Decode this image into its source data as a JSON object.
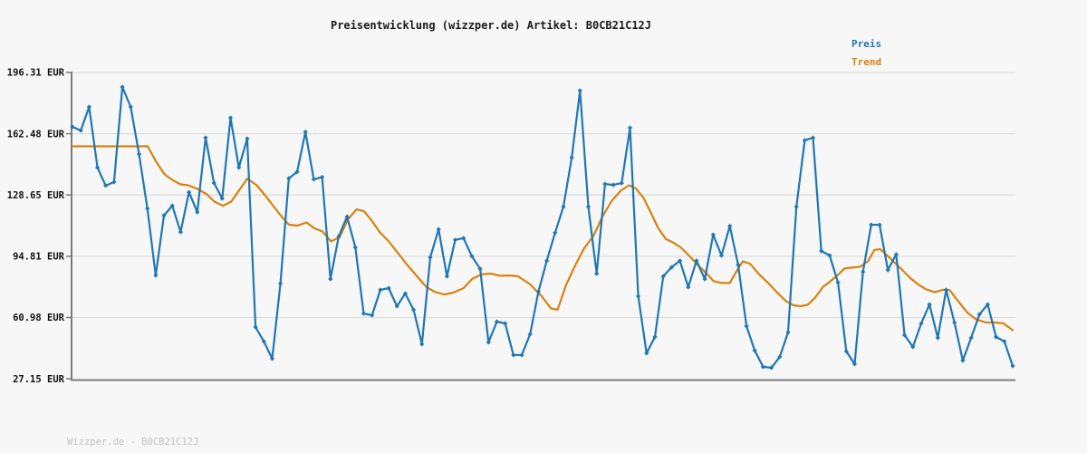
{
  "header": {
    "title": "Preisentwicklung (wizzper.de) Artikel: B0CB21C12J"
  },
  "legend": {
    "items": [
      {
        "label": "Preis",
        "color": "#1f77b4"
      },
      {
        "label": "Trend",
        "color": "#d8820e"
      }
    ]
  },
  "watermark": {
    "text": "Wizzper.de - B0CB21C12J"
  },
  "y_axis": {
    "unit": "EUR",
    "ticks": [
      "196.31 EUR",
      "162.48 EUR",
      "128.65 EUR",
      "94.81 EUR",
      "60.98 EUR",
      "27.15 EUR"
    ]
  },
  "colors": {
    "background": "#f7f7f7",
    "gridline": "#dedede",
    "axis": "#7a7a7a",
    "price": "#1f77b4",
    "trend": "#d8820e"
  },
  "chart_data": {
    "type": "line",
    "title": "Preisentwicklung (wizzper.de) Artikel: B0CB21C12J",
    "xlabel": "",
    "ylabel": "EUR",
    "ylim": [
      27.15,
      196.31
    ],
    "y_tick_values": [
      196.31,
      162.48,
      128.65,
      94.81,
      60.98,
      27.15
    ],
    "grid": "horizontal",
    "legend_position": "top-right",
    "x_axis_labels": "none (time axis unlabeled)",
    "series": [
      {
        "name": "Preis",
        "color": "#1f77b4",
        "marker": "diamond",
        "values": [
          166.3,
          164.3,
          177.3,
          143.8,
          133.8,
          135.8,
          188.3,
          177.3,
          151.2,
          121.2,
          84.2,
          117.3,
          122.7,
          108.2,
          130.2,
          119.2,
          160.3,
          135.3,
          126.7,
          171.3,
          143.8,
          159.8,
          55.7,
          47.7,
          38.2,
          79.7,
          137.8,
          141.4,
          163.5,
          137.3,
          138.5,
          82.2,
          105.7,
          116.7,
          99.7,
          63.2,
          62.2,
          76.2,
          77.2,
          67.2,
          74.2,
          65.2,
          46.2,
          94.2,
          109.7,
          83.7,
          103.8,
          104.8,
          94.8,
          87.8,
          47.2,
          58.7,
          57.7,
          40.2,
          40.2,
          51.7,
          75.2,
          92.3,
          107.8,
          122.2,
          149.3,
          186.3,
          122.2,
          85.2,
          134.7,
          134.2,
          135.2,
          165.8,
          72.7,
          41.2,
          50.2,
          83.7,
          88.7,
          92.3,
          77.7,
          92.3,
          82.2,
          106.7,
          95.2,
          111.5,
          90.0,
          56.2,
          42.7,
          33.7,
          33.2,
          39.2,
          52.7,
          122.2,
          158.8,
          160.3,
          97.7,
          95.2,
          80.3,
          42.2,
          35.2,
          86.2,
          112.2,
          112.2,
          87.2,
          95.8,
          51.2,
          44.7,
          57.7,
          68.2,
          49.7,
          76.2,
          58.2,
          37.2,
          49.7,
          62.7,
          68.2,
          50.2,
          47.7,
          34.2
        ]
      },
      {
        "name": "Trend",
        "color": "#d8820e",
        "marker": "none",
        "points": [
          [
            0.0,
            155.5
          ],
          [
            0.048,
            155.5
          ],
          [
            0.08,
            155.5
          ],
          [
            0.089,
            147.0
          ],
          [
            0.098,
            140.0
          ],
          [
            0.106,
            137.0
          ],
          [
            0.115,
            134.5
          ],
          [
            0.123,
            134.0
          ],
          [
            0.133,
            132.0
          ],
          [
            0.143,
            129.0
          ],
          [
            0.151,
            125.0
          ],
          [
            0.16,
            122.7
          ],
          [
            0.169,
            125.0
          ],
          [
            0.177,
            131.0
          ],
          [
            0.186,
            137.7
          ],
          [
            0.196,
            134.0
          ],
          [
            0.204,
            129.0
          ],
          [
            0.213,
            123.0
          ],
          [
            0.222,
            117.0
          ],
          [
            0.23,
            112.3
          ],
          [
            0.239,
            111.7
          ],
          [
            0.249,
            113.5
          ],
          [
            0.257,
            110.3
          ],
          [
            0.266,
            108.5
          ],
          [
            0.275,
            103.0
          ],
          [
            0.284,
            105.2
          ],
          [
            0.293,
            115.2
          ],
          [
            0.302,
            120.7
          ],
          [
            0.31,
            119.7
          ],
          [
            0.318,
            114.7
          ],
          [
            0.327,
            108.0
          ],
          [
            0.336,
            103.2
          ],
          [
            0.347,
            96.0
          ],
          [
            0.356,
            90.0
          ],
          [
            0.366,
            84.0
          ],
          [
            0.376,
            78.0
          ],
          [
            0.385,
            75.2
          ],
          [
            0.395,
            73.7
          ],
          [
            0.405,
            74.7
          ],
          [
            0.416,
            77.2
          ],
          [
            0.425,
            82.2
          ],
          [
            0.435,
            84.8
          ],
          [
            0.445,
            85.2
          ],
          [
            0.455,
            84.0
          ],
          [
            0.464,
            84.2
          ],
          [
            0.474,
            83.7
          ],
          [
            0.487,
            79.2
          ],
          [
            0.499,
            72.7
          ],
          [
            0.509,
            66.0
          ],
          [
            0.516,
            65.3
          ],
          [
            0.525,
            79.0
          ],
          [
            0.535,
            90.0
          ],
          [
            0.544,
            99.0
          ],
          [
            0.554,
            106.0
          ],
          [
            0.564,
            117.0
          ],
          [
            0.573,
            125.0
          ],
          [
            0.583,
            131.0
          ],
          [
            0.592,
            134.0
          ],
          [
            0.599,
            132.3
          ],
          [
            0.607,
            127.3
          ],
          [
            0.615,
            119.0
          ],
          [
            0.623,
            110.3
          ],
          [
            0.631,
            104.3
          ],
          [
            0.639,
            102.3
          ],
          [
            0.647,
            99.7
          ],
          [
            0.656,
            95.0
          ],
          [
            0.665,
            90.0
          ],
          [
            0.673,
            86.0
          ],
          [
            0.682,
            81.0
          ],
          [
            0.691,
            80.0
          ],
          [
            0.699,
            80.0
          ],
          [
            0.708,
            88.0
          ],
          [
            0.713,
            92.0
          ],
          [
            0.721,
            90.5
          ],
          [
            0.73,
            85.0
          ],
          [
            0.74,
            80.0
          ],
          [
            0.749,
            75.0
          ],
          [
            0.759,
            70.0
          ],
          [
            0.767,
            67.7
          ],
          [
            0.774,
            67.2
          ],
          [
            0.782,
            68.0
          ],
          [
            0.79,
            72.0
          ],
          [
            0.798,
            77.7
          ],
          [
            0.805,
            80.5
          ],
          [
            0.813,
            84.0
          ],
          [
            0.821,
            88.0
          ],
          [
            0.829,
            88.5
          ],
          [
            0.838,
            89.0
          ],
          [
            0.846,
            92.0
          ],
          [
            0.853,
            98.3
          ],
          [
            0.859,
            98.7
          ],
          [
            0.867,
            95.0
          ],
          [
            0.875,
            91.0
          ],
          [
            0.882,
            87.5
          ],
          [
            0.891,
            82.7
          ],
          [
            0.9,
            79.0
          ],
          [
            0.908,
            76.5
          ],
          [
            0.917,
            75.0
          ],
          [
            0.926,
            76.3
          ],
          [
            0.933,
            76.0
          ],
          [
            0.942,
            70.0
          ],
          [
            0.952,
            63.5
          ],
          [
            0.961,
            60.0
          ],
          [
            0.971,
            58.3
          ],
          [
            0.981,
            58.2
          ],
          [
            0.99,
            57.8
          ],
          [
            1.0,
            54.0
          ]
        ]
      }
    ]
  }
}
